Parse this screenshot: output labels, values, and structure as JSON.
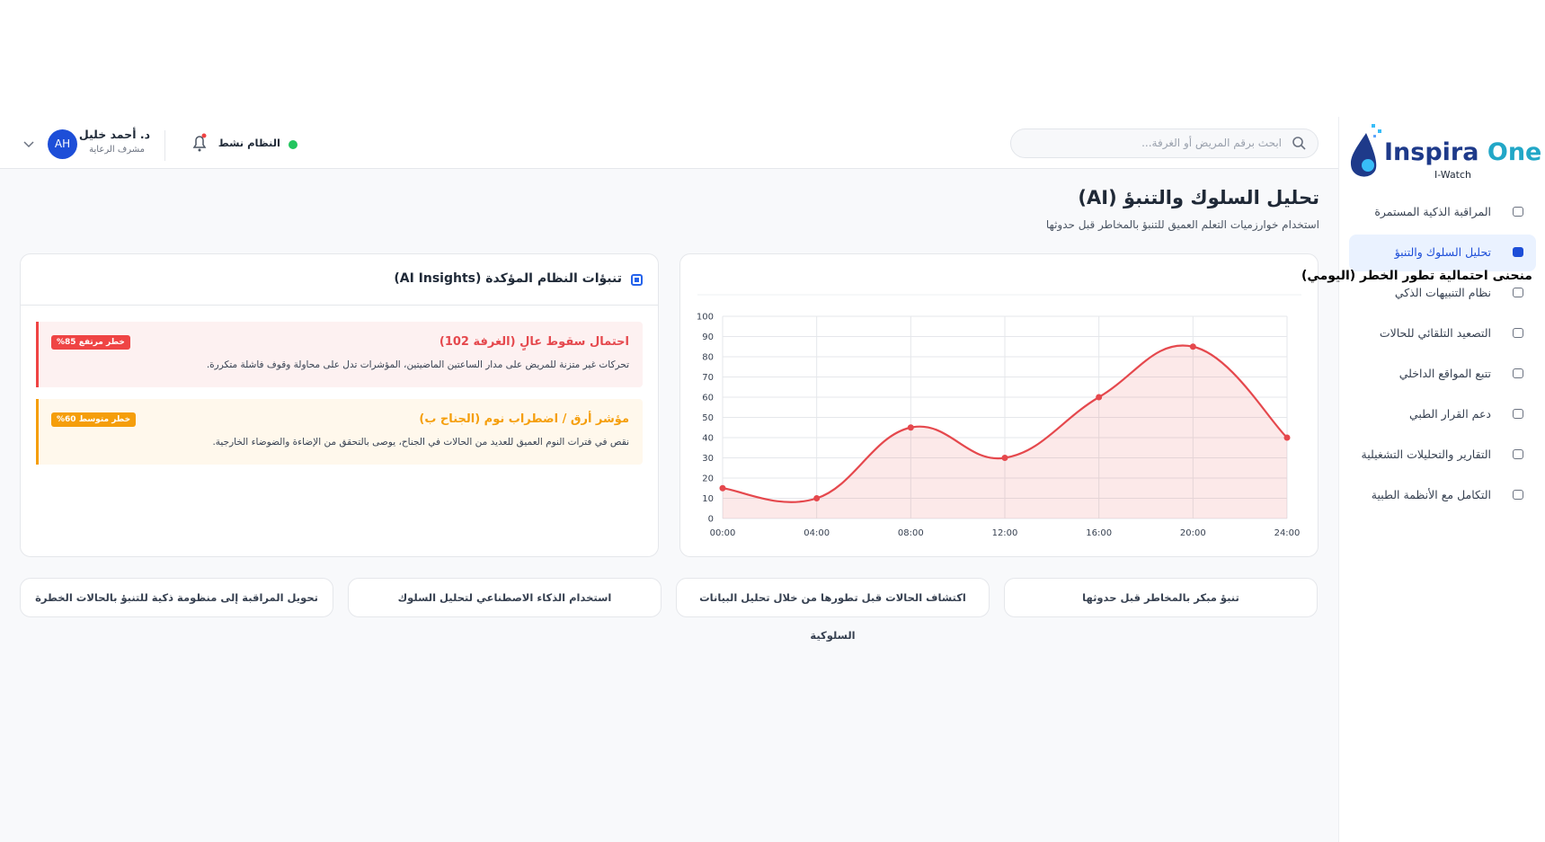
{
  "header": {
    "search_placeholder": "ابحث برقم المريض أو الغرفة...",
    "status": "النظام نشط",
    "user_name": "د. أحمد خليل",
    "user_role": "مشرف الرعاية",
    "avatar": "AH"
  },
  "sidebar": {
    "brand": "Inspira",
    "brand_accent": "One",
    "brand_sub": "I-Watch",
    "items": [
      "المراقبة الذكية المستمرة",
      "تحليل السلوك والتنبؤ",
      "نظام التنبيهات الذكي",
      "التصعيد التلقائي للحالات",
      "تتبع المواقع الداخلي",
      "دعم القرار الطبي",
      "التقارير والتحليلات التشغيلية",
      "التكامل مع الأنظمة الطبية"
    ]
  },
  "page": {
    "title": "تحليل السلوك والتنبؤ (AI)",
    "subtitle": "استخدام خوارزميات التعلم العميق للتنبؤ بالمخاطر قبل حدوثها"
  },
  "chart_data": {
    "type": "line",
    "title": "منحنى احتمالية تطور الخطر (اليومي)",
    "categories": [
      "00:00",
      "04:00",
      "08:00",
      "12:00",
      "16:00",
      "20:00",
      "24:00"
    ],
    "values": [
      15,
      10,
      45,
      30,
      60,
      85,
      40
    ],
    "color": "#e5484d",
    "ylim": [
      0,
      100
    ],
    "yticks": [
      0,
      10,
      20,
      30,
      40,
      50,
      60,
      70,
      80,
      90,
      100
    ],
    "grid": true
  },
  "insights": {
    "title": "تنبؤات النظام المؤكدة (AI Insights)",
    "items": [
      {
        "title": "احتمال سقوط عالٍ (الغرفة 102)",
        "badge": "خطر مرتفع 85%",
        "text": "تحركات غير متزنة للمريض على مدار الساعتين الماضيتين، المؤشرات تدل على محاولة وقوف فاشلة متكررة."
      },
      {
        "title": "مؤشر أرق / اضطراب نوم (الجناح ب)",
        "badge": "خطر متوسط 60%",
        "text": "نقص في فترات النوم العميق للعديد من الحالات في الجناح، يوصى بالتحقق من الإضاءة والضوضاء الخارجية."
      }
    ]
  },
  "features": [
    "تنبؤ مبكر بالمخاطر قبل حدوثها",
    "اكتشاف الحالات قبل تطورها من خلال تحليل البيانات السلوكية",
    "استخدام الذكاء الاصطناعي لتحليل السلوك",
    "تحويل المراقبة إلى منظومة ذكية للتنبؤ بالحالات الخطرة"
  ]
}
